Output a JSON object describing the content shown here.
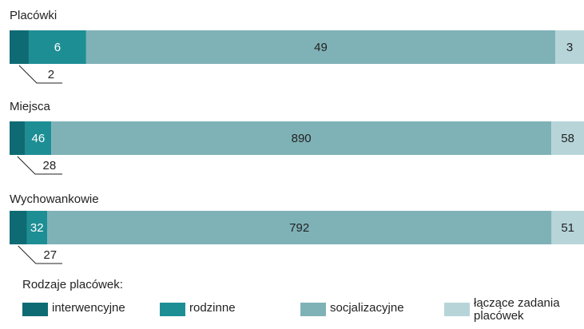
{
  "chart_data": {
    "type": "stacked_bar_100",
    "categories": [
      "Placówki",
      "Miejsca",
      "Wychowankowie"
    ],
    "legend_title": "Rodzaje placówek:",
    "series": [
      {
        "name": "interwencyjne",
        "color": "#0e6b73",
        "values": [
          2,
          28,
          27
        ]
      },
      {
        "name": "rodzinne",
        "color": "#1e8e95",
        "values": [
          6,
          46,
          32
        ]
      },
      {
        "name": "socjalizacyjne",
        "color": "#7fb2b7",
        "values": [
          49,
          890,
          792
        ]
      },
      {
        "name": "łączące zadania placówek",
        "color": "#b7d5d9",
        "values": [
          3,
          58,
          51
        ]
      }
    ]
  }
}
